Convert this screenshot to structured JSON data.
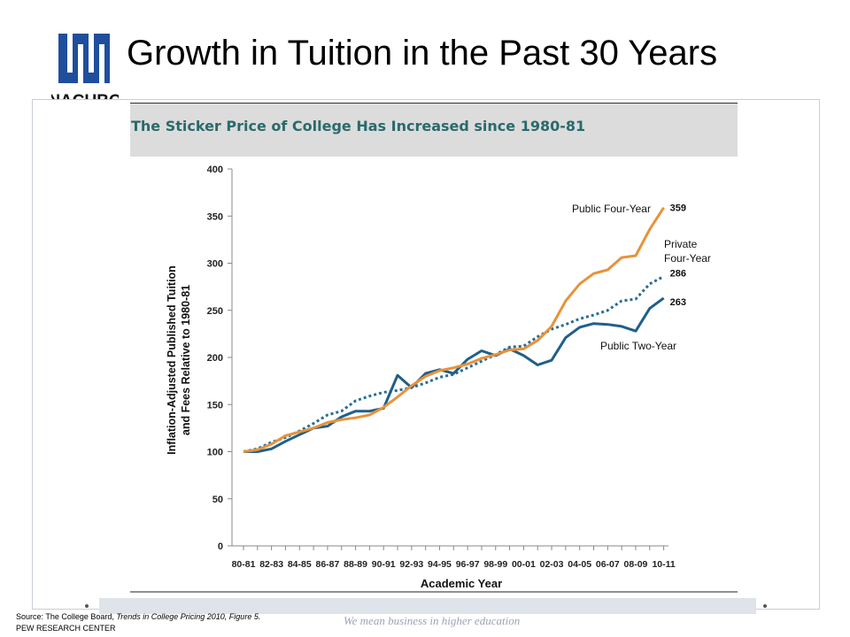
{
  "slide": {
    "title": "Growth in Tuition in the Past 30 Years",
    "logo_text": "NACUBO",
    "tagline": "We mean business in higher education",
    "source_prefix": "Source: The College Board, ",
    "source_italic": "Trends in College Pricing 2010, Figure 5.",
    "credit": "PEW RESEARCH CENTER"
  },
  "colors": {
    "orange": "#e8923a",
    "blue_solid": "#1f5f8b",
    "blue_dotted": "#2a6d94",
    "panel_band": "#dcdcdc",
    "panel_title": "#2a6a6a",
    "logo_blue": "#1f4e9c"
  },
  "chart_data": {
    "type": "line",
    "title": "The Sticker Price of College Has Increased since 1980-81",
    "xlabel": "Academic Year",
    "ylabel": "Inflation-Adjusted Published Tuition and Fees Relative to 1980-81",
    "ylim": [
      0,
      400
    ],
    "yticks": [
      0,
      50,
      100,
      150,
      200,
      250,
      300,
      350,
      400
    ],
    "grid": false,
    "x_tick_labels": [
      "80-81",
      "82-83",
      "84-85",
      "86-87",
      "88-89",
      "90-91",
      "92-93",
      "94-95",
      "96-97",
      "98-99",
      "00-01",
      "02-03",
      "04-05",
      "06-07",
      "08-09",
      "10-11"
    ],
    "x": [
      "80-81",
      "81-82",
      "82-83",
      "83-84",
      "84-85",
      "85-86",
      "86-87",
      "87-88",
      "88-89",
      "89-90",
      "90-91",
      "91-92",
      "92-93",
      "93-94",
      "94-95",
      "95-96",
      "96-97",
      "97-98",
      "98-99",
      "99-00",
      "00-01",
      "01-02",
      "02-03",
      "03-04",
      "04-05",
      "05-06",
      "06-07",
      "07-08",
      "08-09",
      "09-10",
      "10-11"
    ],
    "series": [
      {
        "name": "Public Four-Year",
        "style": "solid",
        "color": "orange",
        "end_label": "359",
        "values": [
          100,
          102,
          108,
          117,
          121,
          125,
          131,
          134,
          136,
          139,
          147,
          158,
          170,
          180,
          186,
          189,
          193,
          199,
          203,
          208,
          209,
          218,
          233,
          260,
          278,
          289,
          293,
          306,
          308,
          336,
          359
        ]
      },
      {
        "name": "Private Four-Year",
        "style": "dotted",
        "color": "blue_dotted",
        "end_label": "286",
        "values": [
          100,
          103,
          110,
          115,
          122,
          130,
          139,
          143,
          154,
          159,
          163,
          165,
          168,
          173,
          179,
          182,
          189,
          196,
          203,
          211,
          212,
          222,
          230,
          235,
          241,
          245,
          250,
          260,
          262,
          278,
          286
        ]
      },
      {
        "name": "Public Two-Year",
        "style": "solid",
        "color": "blue_solid",
        "end_label": "263",
        "values": [
          100,
          100,
          103,
          111,
          118,
          125,
          127,
          137,
          143,
          143,
          146,
          181,
          168,
          183,
          187,
          183,
          198,
          207,
          202,
          209,
          202,
          192,
          197,
          221,
          232,
          236,
          235,
          233,
          228,
          252,
          263
        ]
      }
    ]
  }
}
